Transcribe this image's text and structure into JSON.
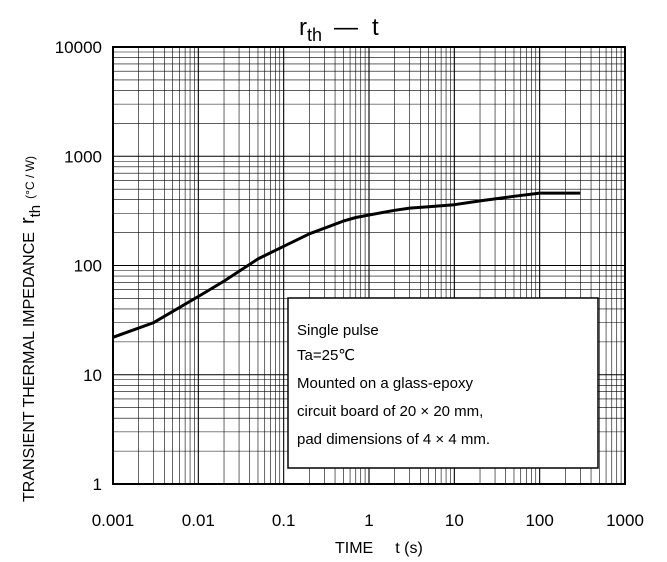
{
  "chart_data": {
    "type": "line",
    "title": {
      "main": "r",
      "sub": "th",
      "dash": "—",
      "var": "t"
    },
    "xlabel": {
      "text": "TIME",
      "unit": "t (s)"
    },
    "ylabel": {
      "text": "TRANSIENT THERMAL IMPEDANCE",
      "sym": "r",
      "sub": "th",
      "unit": "(°C / W)"
    },
    "x_scale": "log",
    "y_scale": "log",
    "xlim": [
      0.001,
      1000
    ],
    "ylim": [
      1,
      10000
    ],
    "x_ticks": [
      "0.001",
      "0.01",
      "0.1",
      "1",
      "10",
      "100",
      "1000"
    ],
    "y_ticks": [
      "1",
      "10",
      "100",
      "1000",
      "10000"
    ],
    "grid": true,
    "series": [
      {
        "x": [
          0.001,
          0.003,
          0.01,
          0.02,
          0.05,
          0.1,
          0.2,
          0.5,
          0.7,
          1,
          2,
          3,
          5,
          10,
          20,
          50,
          100,
          300
        ],
        "y": [
          22,
          30,
          52,
          72,
          115,
          150,
          195,
          255,
          275,
          290,
          320,
          335,
          345,
          360,
          390,
          430,
          460,
          460
        ]
      }
    ],
    "annotation": {
      "lines": [
        "Single pulse",
        "Ta=25℃",
        "Mounted on a glass-epoxy",
        "circuit board of 20 × 20 mm,",
        "pad dimensions of 4 × 4 mm."
      ]
    }
  }
}
